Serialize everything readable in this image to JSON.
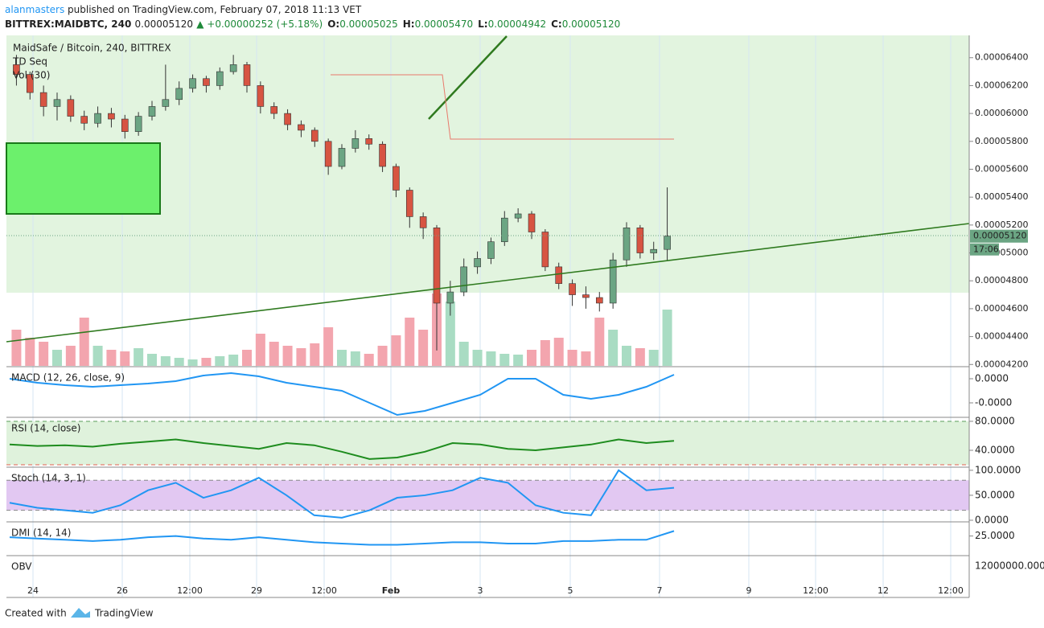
{
  "header": {
    "author": "alanmasters",
    "published": "published on TradingView.com, February 07, 2018 11:13 VET",
    "symbol": "BITTREX:MAIDBTC, 240",
    "price": "0.00005120",
    "change": "▲ +0.00000252 (+5.18%)",
    "ohlc": [
      {
        "label": "O:",
        "value": "0.00005025"
      },
      {
        "label": "H:",
        "value": "0.00005470"
      },
      {
        "label": "L:",
        "value": "0.00004942"
      },
      {
        "label": "C:",
        "value": "0.00005120"
      }
    ]
  },
  "chart_data": {
    "type": "candlestick",
    "title": "MaidSafe / Bitcoin, 240, BITTREX",
    "legend": [
      "TD Seq",
      "Vol (30)"
    ],
    "candles": {
      "open": [
        6.35e-05,
        6.28e-05,
        6.15e-05,
        6.05e-05,
        6.1e-05,
        5.98e-05,
        5.93e-05,
        6e-05,
        5.96e-05,
        5.87e-05,
        5.98e-05,
        6.05e-05,
        6.1e-05,
        6.18e-05,
        6.25e-05,
        6.2e-05,
        6.3e-05,
        6.35e-05,
        6.2e-05,
        6.05e-05,
        6e-05,
        5.92e-05,
        5.88e-05,
        5.8e-05,
        5.62e-05,
        5.75e-05,
        5.82e-05,
        5.78e-05,
        5.62e-05,
        5.45e-05,
        5.26e-05,
        5.18e-05,
        4.64e-05,
        4.72e-05,
        4.9e-05,
        4.96e-05,
        5.08e-05,
        5.25e-05,
        5.28e-05,
        5.15e-05,
        4.9e-05,
        4.78e-05,
        4.7e-05,
        4.68e-05,
        4.64e-05,
        4.95e-05,
        5.18e-05,
        5e-05,
        5.025e-05
      ],
      "high": [
        6.42e-05,
        6.3e-05,
        6.2e-05,
        6.15e-05,
        6.13e-05,
        6.02e-05,
        6.05e-05,
        6.04e-05,
        5.99e-05,
        6.01e-05,
        6.09e-05,
        6.35e-05,
        6.23e-05,
        6.28e-05,
        6.27e-05,
        6.33e-05,
        6.42e-05,
        6.37e-05,
        6.23e-05,
        6.08e-05,
        6.03e-05,
        5.95e-05,
        5.9e-05,
        5.82e-05,
        5.78e-05,
        5.88e-05,
        5.85e-05,
        5.8e-05,
        5.64e-05,
        5.47e-05,
        5.29e-05,
        5.2e-05,
        4.8e-05,
        4.96e-05,
        5.01e-05,
        5.11e-05,
        5.3e-05,
        5.32e-05,
        5.3e-05,
        5.17e-05,
        4.93e-05,
        4.81e-05,
        4.76e-05,
        4.72e-05,
        5e-05,
        5.22e-05,
        5.2e-05,
        5.08e-05,
        5.47e-05
      ],
      "low": [
        6.2e-05,
        6.1e-05,
        5.98e-05,
        5.95e-05,
        5.94e-05,
        5.88e-05,
        5.9e-05,
        5.9e-05,
        5.82e-05,
        5.84e-05,
        5.95e-05,
        6.02e-05,
        6.06e-05,
        6.15e-05,
        6.15e-05,
        6.17e-05,
        6.28e-05,
        6.15e-05,
        6e-05,
        5.96e-05,
        5.88e-05,
        5.83e-05,
        5.76e-05,
        5.56e-05,
        5.6e-05,
        5.72e-05,
        5.74e-05,
        5.58e-05,
        5.4e-05,
        5.18e-05,
        5.1e-05,
        4.3e-05,
        4.55e-05,
        4.69e-05,
        4.85e-05,
        4.92e-05,
        5.05e-05,
        5.22e-05,
        5.1e-05,
        4.87e-05,
        4.74e-05,
        4.62e-05,
        4.6e-05,
        4.58e-05,
        4.6e-05,
        4.9e-05,
        4.96e-05,
        4.95e-05,
        4.942e-05
      ],
      "close": [
        6.28e-05,
        6.15e-05,
        6.05e-05,
        6.1e-05,
        5.98e-05,
        5.93e-05,
        6e-05,
        5.96e-05,
        5.87e-05,
        5.98e-05,
        6.05e-05,
        6.1e-05,
        6.18e-05,
        6.25e-05,
        6.2e-05,
        6.3e-05,
        6.35e-05,
        6.2e-05,
        6.05e-05,
        6e-05,
        5.92e-05,
        5.88e-05,
        5.8e-05,
        5.62e-05,
        5.75e-05,
        5.82e-05,
        5.78e-05,
        5.62e-05,
        5.45e-05,
        5.26e-05,
        5.18e-05,
        4.64e-05,
        4.72e-05,
        4.9e-05,
        4.96e-05,
        5.08e-05,
        5.25e-05,
        5.28e-05,
        5.15e-05,
        4.9e-05,
        4.78e-05,
        4.7e-05,
        4.68e-05,
        4.64e-05,
        4.95e-05,
        5.18e-05,
        5e-05,
        5.025e-05,
        5.12e-05
      ]
    },
    "volume": [
      45,
      35,
      30,
      20,
      25,
      60,
      25,
      20,
      18,
      22,
      15,
      12,
      10,
      8,
      10,
      12,
      14,
      20,
      40,
      30,
      25,
      22,
      28,
      48,
      20,
      18,
      15,
      25,
      38,
      60,
      45,
      90,
      80,
      30,
      20,
      18,
      15,
      14,
      20,
      32,
      35,
      20,
      18,
      60,
      45,
      25,
      22,
      20,
      70
    ],
    "up_color": "#6ba583",
    "down_color": "#d75442",
    "up_volume_color": "#a9dcc3",
    "down_volume_color": "#f3a5ae",
    "ylim": [
      4.19e-05,
      6.56e-05
    ],
    "yticks": [
      {
        "value": 4.2e-05,
        "label": "0.00004200"
      },
      {
        "value": 4.4e-05,
        "label": "0.00004400"
      },
      {
        "value": 4.6e-05,
        "label": "0.00004600"
      },
      {
        "value": 4.8e-05,
        "label": "0.00004800"
      },
      {
        "value": 5e-05,
        "label": "0.00005000"
      },
      {
        "value": 5.2e-05,
        "label": "0.00005200"
      },
      {
        "value": 5.4e-05,
        "label": "0.00005400"
      },
      {
        "value": 5.6e-05,
        "label": "0.00005600"
      },
      {
        "value": 5.8e-05,
        "label": "0.00005800"
      },
      {
        "value": 6e-05,
        "label": "0.00006000"
      },
      {
        "value": 6.2e-05,
        "label": "0.00006200"
      },
      {
        "value": 6.4e-05,
        "label": "0.00006400"
      }
    ],
    "last_price": {
      "value": 5.12e-05,
      "label": "0.00005120"
    },
    "countdown": "17:06",
    "xticks": [
      "24",
      "26",
      "12:00",
      "29",
      "12:00",
      "Feb",
      "3",
      "5",
      "7",
      "9",
      "12:00",
      "12",
      "12:00"
    ],
    "grid": true
  },
  "indicators": [
    {
      "title": "MACD (12, 26, close, 9)",
      "color": "#2196f3",
      "ylim": [
        -4.7e-07,
        1.3e-07
      ],
      "yticks": [
        {
          "value": 0,
          "label": "0.0000"
        },
        {
          "value": -3e-07,
          "label": "-0.0000"
        }
      ],
      "values": [
        0,
        -5e-08,
        -8e-08,
        -1e-07,
        -8e-08,
        -6e-08,
        -3e-08,
        4e-08,
        7e-08,
        3e-08,
        -5e-08,
        -1e-07,
        -1.5e-07,
        -3e-07,
        -4.5e-07,
        -4e-07,
        -3e-07,
        -2e-07,
        0,
        0,
        -2e-07,
        -2.5e-07,
        -2e-07,
        -1e-07,
        5e-08
      ]
    },
    {
      "title": "RSI (14, close)",
      "color": "#1e8c1e",
      "ylim": [
        17.8,
        83.3
      ],
      "yticks": [
        {
          "value": 80,
          "label": "80.0000"
        },
        {
          "value": 40,
          "label": "40.0000"
        }
      ],
      "band": [
        20,
        80
      ],
      "values": [
        48,
        46,
        47,
        45,
        49,
        52,
        55,
        50,
        46,
        42,
        50,
        47,
        38,
        28,
        30,
        38,
        50,
        48,
        42,
        40,
        44,
        48,
        55,
        50,
        53
      ]
    },
    {
      "title": "Stoch (14, 3, 1)",
      "color": "#2196f3",
      "ylim": [
        -1.6,
        103
      ],
      "yticks": [
        {
          "value": 100,
          "label": "100.0000"
        },
        {
          "value": 50,
          "label": "50.0000"
        },
        {
          "value": 0,
          "label": "0.0000"
        }
      ],
      "band": [
        20,
        80
      ],
      "values": [
        35,
        25,
        20,
        15,
        30,
        60,
        75,
        45,
        60,
        85,
        50,
        10,
        5,
        20,
        45,
        50,
        60,
        85,
        75,
        30,
        15,
        10,
        100,
        60,
        65
      ]
    },
    {
      "title": "DMI (14, 14)",
      "color": "#2196f3",
      "ylim": [
        10,
        35
      ],
      "yticks": [
        {
          "value": 25,
          "label": "25.0000"
        }
      ],
      "values": [
        24,
        23,
        22,
        21,
        22,
        24,
        25,
        23,
        22,
        24,
        22,
        20,
        19,
        18,
        18,
        19,
        20,
        20,
        19,
        19,
        21,
        21,
        22,
        22,
        29
      ]
    },
    {
      "title": "OBV",
      "yticks": [
        {
          "label": "12000000.0000"
        }
      ]
    }
  ],
  "footer": {
    "created": "Created with",
    "brand": "TradingView"
  }
}
